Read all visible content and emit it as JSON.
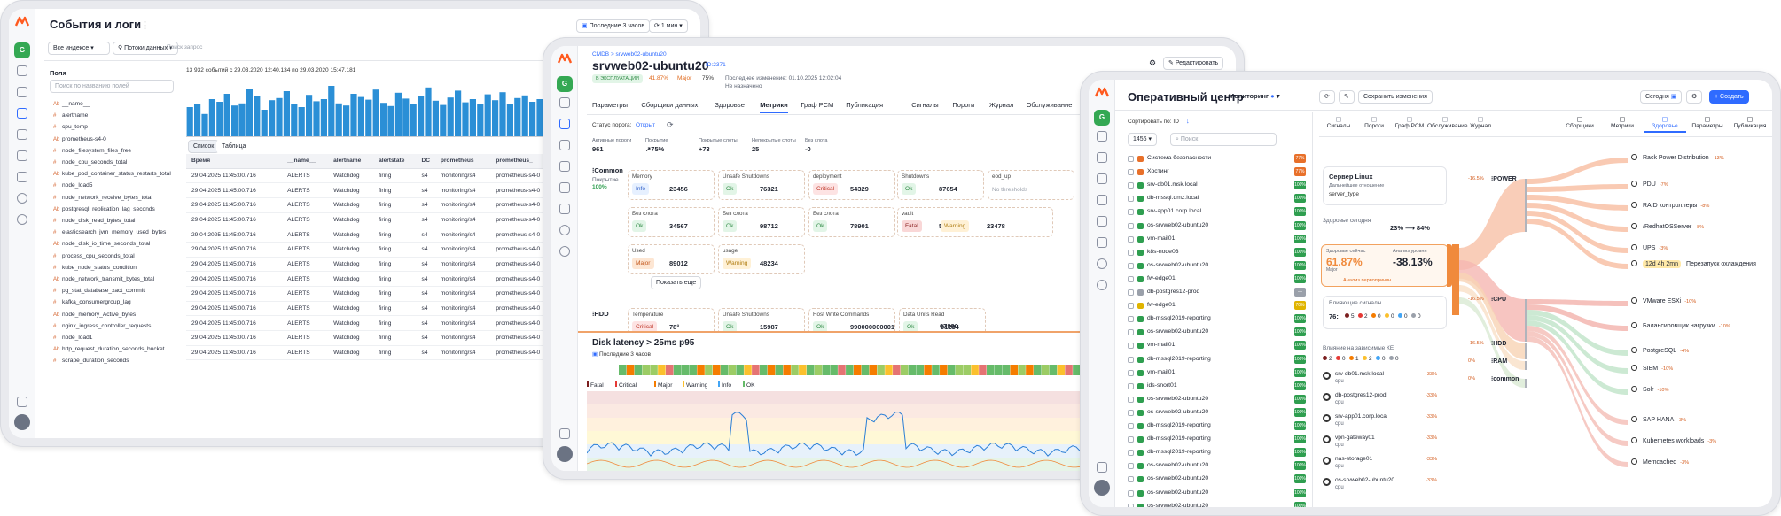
{
  "screen1": {
    "title": "События и логи",
    "time_range": "Последние 3 часов",
    "refresh": "1 мин",
    "index_select": "Все индексе",
    "stream_select": "Потоки данных",
    "search_placeholder": "Поиск запрос",
    "fields_label": "Поля",
    "fields_search_placeholder": "Поиск по названию полей",
    "summary": "13 932 событий с 29.03.2020 12:40.134 по 29.03.2020 15:47.181",
    "view_tabs": [
      "Список",
      "Таблица"
    ],
    "fields": [
      "__name__",
      "alertname",
      "cpu_temp",
      "prometheus-s4-0",
      "node_filesystem_files_free",
      "node_cpu_seconds_total",
      "kube_pod_container_status_restarts_total",
      "node_load5",
      "node_network_receive_bytes_total",
      "postgresql_replication_lag_seconds",
      "node_disk_read_bytes_total",
      "elasticsearch_jvm_memory_used_bytes",
      "node_disk_io_time_seconds_total",
      "process_cpu_seconds_total",
      "kube_node_status_condition",
      "node_network_transmit_bytes_total",
      "pg_stat_database_xact_commit",
      "kafka_consumergroup_lag",
      "node_memory_Active_bytes",
      "nginx_ingress_controller_requests",
      "node_load1",
      "http_request_duration_seconds_bucket",
      "scrape_duration_seconds"
    ],
    "table_headers": [
      "Время",
      "__name__",
      "alertname",
      "alertstate",
      "DC",
      "prometheus",
      "prometheus_"
    ],
    "table_row": [
      "29.04.2025 11:45:00.716",
      "ALERTS",
      "Watchdog",
      "firing",
      "s4",
      "monitoring/s4",
      "prometheus-s4-0"
    ],
    "row_count": 13,
    "histogram": [
      0.55,
      0.6,
      0.42,
      0.7,
      0.65,
      0.8,
      0.58,
      0.62,
      0.9,
      0.75,
      0.5,
      0.68,
      0.72,
      0.85,
      0.6,
      0.55,
      0.78,
      0.66,
      0.7,
      0.95,
      0.62,
      0.58,
      0.8,
      0.74,
      0.69,
      0.88,
      0.63,
      0.57,
      0.82,
      0.71,
      0.6,
      0.76,
      0.92,
      0.67,
      0.59,
      0.73,
      0.86,
      0.64,
      0.7,
      0.61,
      0.79,
      0.68,
      0.83,
      0.6,
      0.72,
      0.77,
      0.65,
      0.7,
      0.88,
      0.62
    ]
  },
  "screen2": {
    "breadcrumb": "CMDB > srvweb02-ubuntu20",
    "title": "srvweb02-ubuntu20",
    "id_tag": "ID:2371",
    "status_badge": "В ЭКСПЛУАТАЦИИ",
    "health": "41.87%",
    "health_label": "Major",
    "sla": "75%",
    "last_change": "Последнее изменение: 01.10.2025 12:02:04",
    "owner": "Не назначено",
    "edit_button": "Редактировать",
    "tabs": [
      "Параметры",
      "Сборщики данных",
      "Здоровье",
      "Метрики",
      "Граф PCM",
      "Публикация",
      "Сигналы",
      "Пороги",
      "Журнал",
      "Обслуживание"
    ],
    "threshold_status_label": "Статус порога:",
    "threshold_status": "Открыт",
    "stats": [
      {
        "label": "Активные пороги",
        "value": "961"
      },
      {
        "label": "Покрытие",
        "value": "↗75%"
      },
      {
        "label": "Покрытые слоты",
        "value": "+73"
      },
      {
        "label": "Непокрытые слоты",
        "value": "25"
      },
      {
        "label": "Без слота",
        "value": "-0"
      }
    ],
    "group1": "Common",
    "group1_coverage": "Покрытие",
    "group1_pct": "100%",
    "cards": [
      {
        "title": "Memory",
        "chip": "Info",
        "cls": "info",
        "val": "23456"
      },
      {
        "title": "Unsafe Shutdowns",
        "chip": "Ok",
        "cls": "ok",
        "val": "76321"
      },
      {
        "title": "deployment",
        "chip": "Critical",
        "cls": "crit",
        "val": "54329"
      },
      {
        "title": "Shutdowns",
        "chip": "Ok",
        "cls": "ok",
        "val": "87654"
      },
      {
        "title": "eod_up",
        "chip": "",
        "cls": "",
        "val": ""
      },
      {
        "title": "Без слота",
        "chip": "Ok",
        "cls": "ok",
        "val": "34567"
      },
      {
        "title": "Без слота",
        "chip": "Ok",
        "cls": "ok",
        "val": "98712"
      },
      {
        "title": "Без слота",
        "chip": "Ok",
        "cls": "ok",
        "val": "78901"
      },
      {
        "title": "vault",
        "chip": "Fatal",
        "cls": "fatal",
        "val": "54321"
      },
      {
        "title": "Used",
        "chip": "Major",
        "cls": "maj",
        "val": "89012"
      },
      {
        "title": "usage",
        "chip": "Warning",
        "cls": "warn",
        "val": "48234"
      }
    ],
    "card_extra_warning": "23478",
    "no_thresholds": "No thresholds",
    "show_more": "Показать еще",
    "group2": "HDD",
    "cards2": [
      {
        "title": "Temperature",
        "chip": "Critical",
        "cls": "crit",
        "val": "78°"
      },
      {
        "title": "Unsafe Shutdowns",
        "chip": "Ok",
        "cls": "ok",
        "val": "15987"
      },
      {
        "title": "Host Write Commands",
        "chip": "Ok",
        "cls": "ok",
        "val": "990000000001"
      },
      {
        "title": "Data Units Read",
        "chip": "Ok",
        "cls": "ok",
        "val": "91234"
      }
    ],
    "cards2_extra": "67890",
    "chart_title": "Disk latency > 25ms p95",
    "chart_range": "Последние 3 часов",
    "legend": [
      "Fatal",
      "Critical",
      "Major",
      "Warning",
      "Info",
      "OK"
    ],
    "legend_colors": [
      "#7b1f1f",
      "#e53935",
      "#f57c00",
      "#fbc02d",
      "#42a5f5",
      "#66bb6a"
    ]
  },
  "screen3": {
    "title": "Оперативный центр",
    "mode": "Мониторинг",
    "save_button": "Сохранить изменения",
    "today": "Сегодня",
    "create_button": "+ Создать",
    "sort_label": "Сортировать по: ID",
    "count": "1456",
    "search_placeholder": "Поиск",
    "subtabs_left": [
      "Сигналы",
      "Пороги",
      "Граф PCM",
      "Обслуживание",
      "Журнал"
    ],
    "subtabs_right": [
      "Сборщики",
      "Метрики",
      "Здоровье",
      "Параметры",
      "Публикация"
    ],
    "list": [
      {
        "name": "Система безопасности",
        "color": "#e8702a",
        "pct": "77%"
      },
      {
        "name": "Хостинг",
        "color": "#e8702a",
        "pct": "77%"
      },
      {
        "name": "srv-db01.msk.local",
        "color": "#2e9e4f",
        "pct": "100%"
      },
      {
        "name": "db-mssql.dmz.local",
        "color": "#2e9e4f",
        "pct": "100%"
      },
      {
        "name": "srv-app01.corp.local",
        "color": "#2e9e4f",
        "pct": "100%"
      },
      {
        "name": "os-srvweb02-ubuntu20",
        "color": "#2e9e4f",
        "pct": "100%"
      },
      {
        "name": "vm-mail01",
        "color": "#2e9e4f",
        "pct": "100%"
      },
      {
        "name": "k8s-node03",
        "color": "#2e9e4f",
        "pct": "100%"
      },
      {
        "name": "os-srvweb02-ubuntu20",
        "color": "#2e9e4f",
        "pct": "100%"
      },
      {
        "name": "fw-edge01",
        "color": "#2e9e4f",
        "pct": "100%"
      },
      {
        "name": "db-postgres12-prod",
        "color": "#9aa0aa",
        "pct": "—"
      },
      {
        "name": "fw-edge01",
        "color": "#e0b400",
        "pct": "70%"
      },
      {
        "name": "db-mssql2019-reporting",
        "color": "#2e9e4f",
        "pct": "100%"
      },
      {
        "name": "os-srvweb02-ubuntu20",
        "color": "#2e9e4f",
        "pct": "100%"
      },
      {
        "name": "vm-mail01",
        "color": "#2e9e4f",
        "pct": "100%"
      },
      {
        "name": "db-mssql2019-reporting",
        "color": "#2e9e4f",
        "pct": "100%"
      },
      {
        "name": "vm-mail01",
        "color": "#2e9e4f",
        "pct": "100%"
      },
      {
        "name": "ids-snort01",
        "color": "#2e9e4f",
        "pct": "100%"
      },
      {
        "name": "os-srvweb02-ubuntu20",
        "color": "#2e9e4f",
        "pct": "100%"
      },
      {
        "name": "os-srvweb02-ubuntu20",
        "color": "#2e9e4f",
        "pct": "100%"
      },
      {
        "name": "db-mssql2019-reporting",
        "color": "#2e9e4f",
        "pct": "100%"
      },
      {
        "name": "db-mssql2019-reporting",
        "color": "#2e9e4f",
        "pct": "100%"
      },
      {
        "name": "db-mssql2019-reporting",
        "color": "#2e9e4f",
        "pct": "100%"
      },
      {
        "name": "os-srvweb02-ubuntu20",
        "color": "#2e9e4f",
        "pct": "100%"
      },
      {
        "name": "os-srvweb02-ubuntu20",
        "color": "#2e9e4f",
        "pct": "100%"
      },
      {
        "name": "os-srvweb02-ubuntu20",
        "color": "#2e9e4f",
        "pct": "100%"
      },
      {
        "name": "os-srvweb02-ubuntu20",
        "color": "#2e9e4f",
        "pct": "100%"
      }
    ],
    "server_title": "Сервер Linux",
    "server_sub": "Дальнейшее отношение",
    "server_type": "server_type",
    "health_today_label": "Здоровье сегодня",
    "health_today": "23% ⟶ 84%",
    "health_now_label": "Здоровье сейчас",
    "health_now": "61.87%",
    "health_now_state": "Major",
    "analysis_label": "Анализ уровня",
    "analysis_value": "-38.13%",
    "analysis_link": "Анализ первопричин",
    "signals_label": "Влияющие сигналы",
    "signals_count": "76:",
    "signals_counts": [
      "5",
      "2",
      "0",
      "0",
      "0",
      "0"
    ],
    "impact_label": "Влияние на зависимые КЕ",
    "impact_counts": [
      "2",
      "0",
      "1",
      "2",
      "0",
      "0"
    ],
    "impact_items": [
      {
        "name": "srv-db01.msk.local",
        "sub": "cpu",
        "pct": "-33%"
      },
      {
        "name": "db-postgres12-prod",
        "sub": "cpu",
        "pct": "-33%"
      },
      {
        "name": "srv-app01.corp.local",
        "sub": "cpu",
        "pct": "-33%"
      },
      {
        "name": "vpn-gateway01",
        "sub": "cpu",
        "pct": "-33%"
      },
      {
        "name": "nas-storage01",
        "sub": "cpu",
        "pct": "-33%"
      },
      {
        "name": "os-srvweb02-ubuntu20",
        "sub": "cpu",
        "pct": "-33%"
      }
    ],
    "sankey_mid": [
      {
        "name": "POWER",
        "pct": "-16.5%"
      },
      {
        "name": "CPU",
        "pct": "-16.5%"
      },
      {
        "name": "HDD",
        "pct": "-16.5%"
      },
      {
        "name": "RAM",
        "pct": "0%"
      },
      {
        "name": "common",
        "pct": "0%"
      }
    ],
    "sankey_right": [
      {
        "name": "Rack Power Distribution",
        "pct": "-13%"
      },
      {
        "name": "PDU",
        "pct": "-7%"
      },
      {
        "name": "RAID контроллеры",
        "pct": "-8%"
      },
      {
        "name": "/RedhatOSServer",
        "pct": "-8%"
      },
      {
        "name": "UPS",
        "pct": "-3%"
      },
      {
        "name": "12d 4h 2mn",
        "pct": "Перезапуск охлаждения"
      },
      {
        "name": "VMware ESXi",
        "pct": "-10%"
      },
      {
        "name": "Балансировщик нагрузки",
        "pct": "-10%"
      },
      {
        "name": "PostgreSQL",
        "pct": "-4%"
      },
      {
        "name": "SIEM",
        "pct": "-10%"
      },
      {
        "name": "Solr",
        "pct": "-10%"
      },
      {
        "name": "SAP HANA",
        "pct": "-3%"
      },
      {
        "name": "Kubernetes workloads",
        "pct": "-3%"
      },
      {
        "name": "Memcached",
        "pct": "-3%"
      }
    ]
  },
  "colors": {
    "accent": "#2f6bff",
    "orange": "#f08a3c",
    "green": "#2e9e4f",
    "bar_blue": "#2b8fd6"
  }
}
